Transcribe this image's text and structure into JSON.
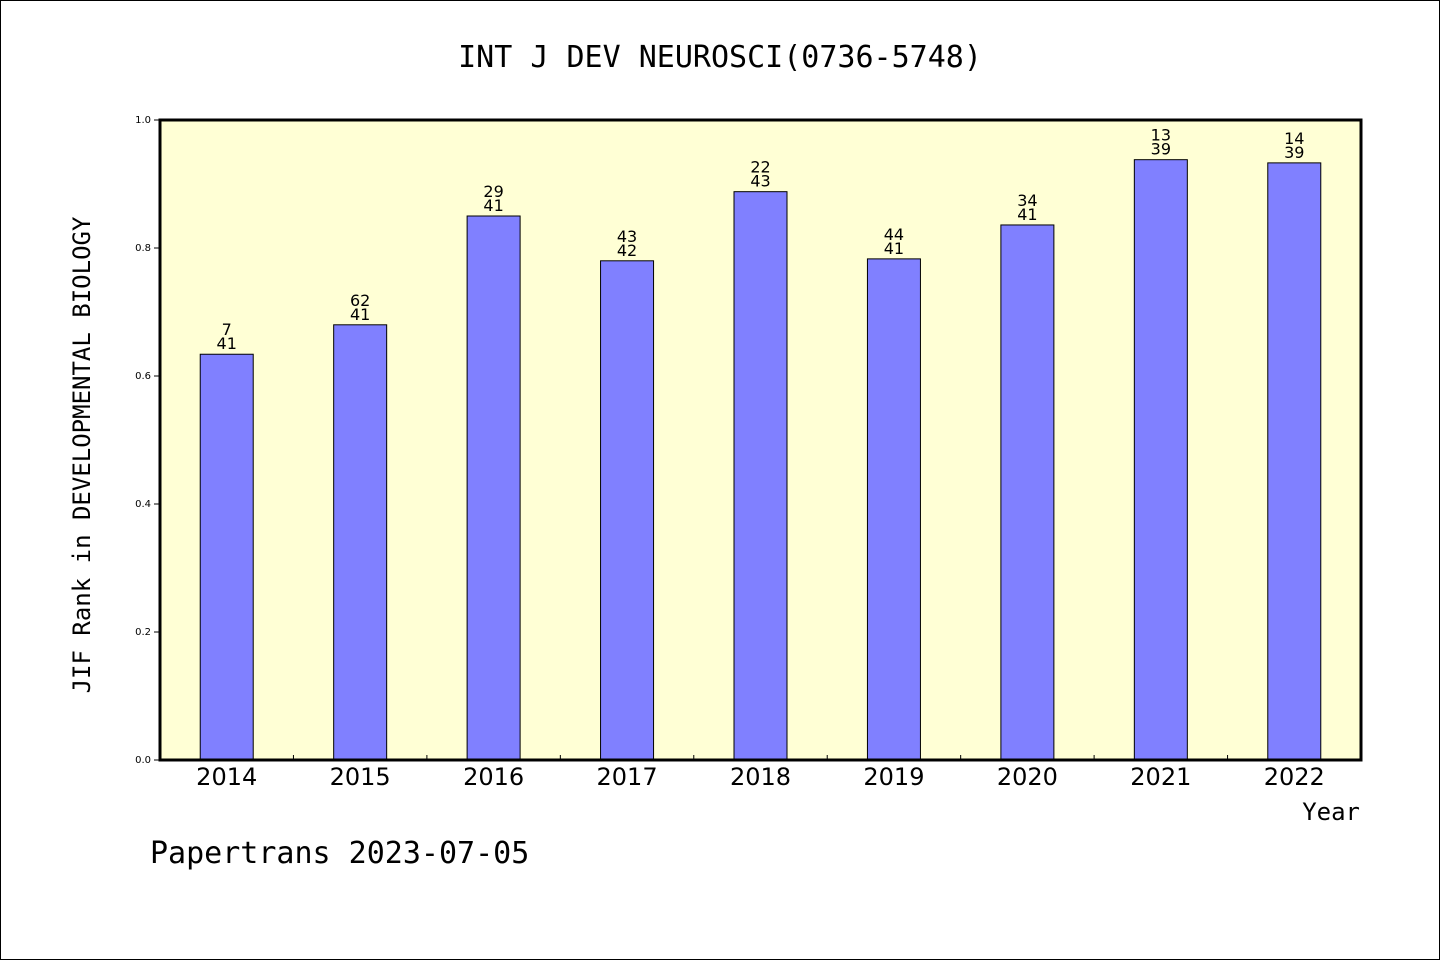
{
  "chart_data": {
    "type": "bar",
    "title": "INT J DEV NEUROSCI(0736-5748)",
    "xlabel": "Year",
    "ylabel": "JIF Rank in DEVELOPMENTAL BIOLOGY",
    "ylim": [
      0,
      1.0
    ],
    "yticks": [
      "0.0",
      "0.2",
      "0.4",
      "0.6",
      "0.8",
      "1.0"
    ],
    "yticks_values": [
      0,
      0.2,
      0.4,
      0.6,
      0.8,
      1.0
    ],
    "grid": false,
    "categories": [
      "2014",
      "2015",
      "2016",
      "2017",
      "2018",
      "2019",
      "2020",
      "2021",
      "2022"
    ],
    "values": [
      0.634,
      0.68,
      0.85,
      0.78,
      0.888,
      0.783,
      0.836,
      0.938,
      0.933
    ],
    "rank_labels": [
      {
        "rank": "7",
        "total": "41"
      },
      {
        "rank": "62",
        "total": "41"
      },
      {
        "rank": "29",
        "total": "41"
      },
      {
        "rank": "43",
        "total": "42"
      },
      {
        "rank": "22",
        "total": "43"
      },
      {
        "rank": "44",
        "total": "41"
      },
      {
        "rank": "34",
        "total": "41"
      },
      {
        "rank": "13",
        "total": "39"
      },
      {
        "rank": "14",
        "total": "39"
      }
    ],
    "colors": {
      "bar": "#8080ff",
      "plot_background": "#ffffd5",
      "axis": "#000000"
    }
  },
  "footer": {
    "watermark": "Papertrans 2023-07-05"
  }
}
